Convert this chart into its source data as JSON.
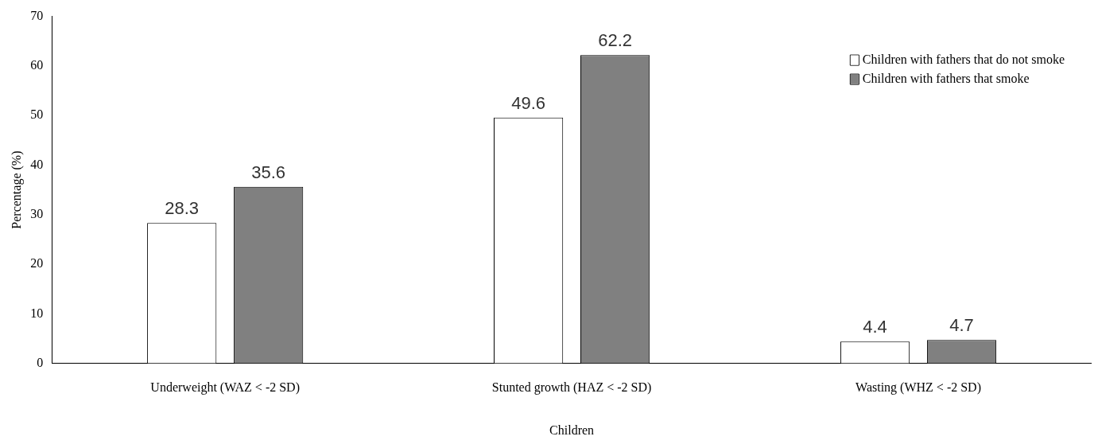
{
  "chart_data": {
    "type": "bar",
    "xlabel": "Children",
    "ylabel": "Percentage (%)",
    "categories": [
      "Underweight (WAZ < -2 SD)",
      "Stunted growth (HAZ < -2 SD)",
      "Wasting (WHZ < -2 SD)"
    ],
    "series": [
      {
        "name": "Children with fathers that do not smoke",
        "color": "#ffffff",
        "values": [
          28.3,
          49.6,
          4.4
        ]
      },
      {
        "name": "Children with fathers that smoke",
        "color": "#808080",
        "values": [
          35.6,
          62.2,
          4.7
        ]
      }
    ],
    "ylim": [
      0,
      70
    ],
    "yticks": [
      0,
      10,
      20,
      30,
      40,
      50,
      60,
      70
    ],
    "grid": false,
    "legend": "top right",
    "data_labels": true
  }
}
